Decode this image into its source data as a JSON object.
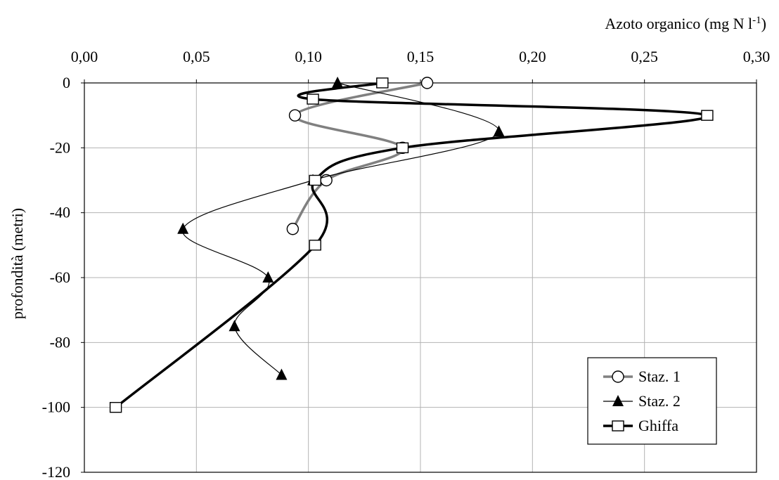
{
  "chart_data": {
    "type": "line",
    "xlabel": "Azoto organico (mg N l",
    "xlabel_sup": "-1",
    "xlabel_end": ")",
    "ylabel": "profondità (metri)",
    "xlim": [
      0,
      0.3
    ],
    "ylim": [
      -120,
      0
    ],
    "x_ticks": [
      0,
      0.05,
      0.1,
      0.15,
      0.2,
      0.25,
      0.3
    ],
    "x_tick_labels": [
      "0,00",
      "0,05",
      "0,10",
      "0,15",
      "0,20",
      "0,25",
      "0,30"
    ],
    "y_ticks": [
      0,
      -20,
      -40,
      -60,
      -80,
      -100,
      -120
    ],
    "y_tick_labels": [
      "0",
      "-20",
      "-40",
      "-60",
      "-80",
      "-100",
      "-120"
    ],
    "x_axis_position": "top",
    "grid": true,
    "legend_position": "bottom-right",
    "series": [
      {
        "name": "Staz. 1",
        "marker": "circle-open",
        "color": "#808080",
        "points": [
          [
            0.153,
            0
          ],
          [
            0.094,
            -10
          ],
          [
            0.142,
            -20
          ],
          [
            0.108,
            -30
          ],
          [
            0.093,
            -45
          ]
        ]
      },
      {
        "name": "Staz. 2",
        "marker": "triangle-filled",
        "color": "#000000",
        "points": [
          [
            0.113,
            0
          ],
          [
            0.185,
            -15
          ],
          [
            0.102,
            -30
          ],
          [
            0.044,
            -45
          ],
          [
            0.082,
            -60
          ],
          [
            0.067,
            -75
          ],
          [
            0.088,
            -90
          ]
        ]
      },
      {
        "name": "Ghiffa",
        "marker": "square-open",
        "color": "#000000",
        "points": [
          [
            0.133,
            0
          ],
          [
            0.102,
            -5
          ],
          [
            0.278,
            -10
          ],
          [
            0.142,
            -20
          ],
          [
            0.103,
            -30
          ],
          [
            0.103,
            -50
          ],
          [
            0.014,
            -100
          ]
        ]
      }
    ]
  }
}
